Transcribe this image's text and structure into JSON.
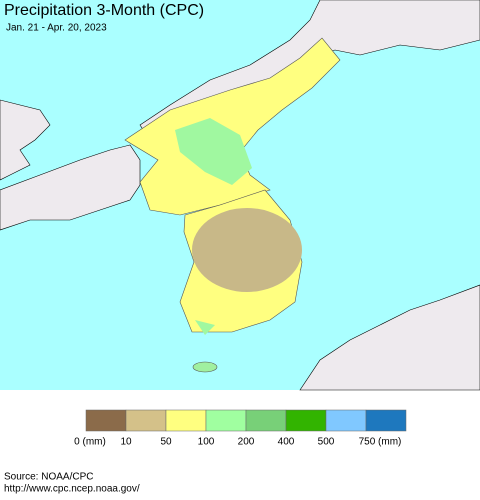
{
  "header": {
    "title": "Precipitation 3-Month (CPC)",
    "subtitle": "Jan. 21 - Apr. 20, 2023"
  },
  "legend": {
    "items": [
      {
        "color": "#8b6b4a",
        "label": "0 (mm)"
      },
      {
        "color": "#d4c189",
        "label": "10"
      },
      {
        "color": "#ffff80",
        "label": "50"
      },
      {
        "color": "#a0ffa0",
        "label": "100"
      },
      {
        "color": "#78d078",
        "label": "200"
      },
      {
        "color": "#32b400",
        "label": "400"
      },
      {
        "color": "#80c8ff",
        "label": "500"
      },
      {
        "color": "#1e78be",
        "label": "750 (mm)"
      }
    ]
  },
  "footer": {
    "source": "Source: NOAA/CPC",
    "url": "http://www.cpc.ncep.noaa.gov/"
  }
}
